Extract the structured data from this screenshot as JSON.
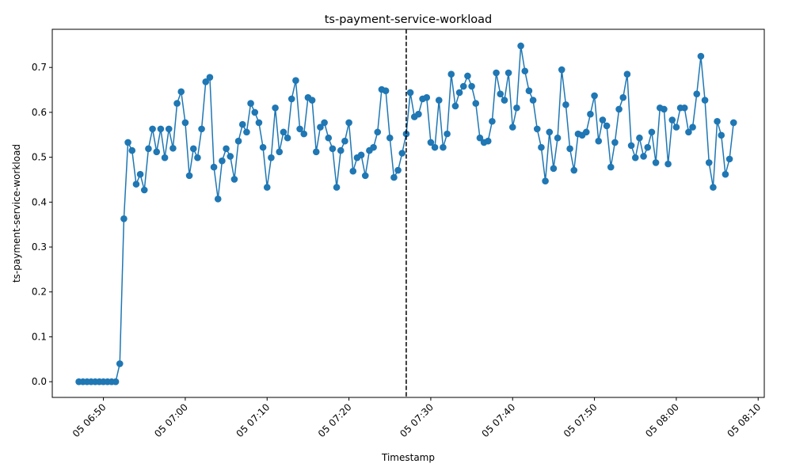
{
  "chart_data": {
    "type": "line",
    "title": "ts-payment-service-workload",
    "xlabel": "Timestamp",
    "ylabel": "ts-payment-service-workload",
    "x_start": "05 06:47",
    "x_step_seconds": 30,
    "xlim": [
      "05 06:43:45",
      "05 08:10:45"
    ],
    "ylim": [
      -0.035,
      0.785
    ],
    "y_ticks": [
      0.0,
      0.1,
      0.2,
      0.3,
      0.4,
      0.5,
      0.6,
      0.7
    ],
    "y_tick_labels": [
      "0.0",
      "0.1",
      "0.2",
      "0.3",
      "0.4",
      "0.5",
      "0.6",
      "0.7"
    ],
    "x_ticks": [
      "05 06:50",
      "05 07:00",
      "05 07:10",
      "05 07:20",
      "05 07:30",
      "05 07:40",
      "05 07:50",
      "05 08:00",
      "05 08:10"
    ],
    "x_tick_labels": [
      "05 06:50",
      "05 07:00",
      "05 07:10",
      "05 07:20",
      "05 07:30",
      "05 07:40",
      "05 07:50",
      "05 08:00",
      "05 08:10"
    ],
    "vline": "05 07:27",
    "series": [
      {
        "color": "#1f77b4",
        "values": [
          0.0,
          0.0,
          0.0,
          0.0,
          0.0,
          0.0,
          0.0,
          0.0,
          0.0,
          0.0,
          0.04,
          0.363,
          0.533,
          0.515,
          0.44,
          0.462,
          0.427,
          0.519,
          0.563,
          0.512,
          0.563,
          0.499,
          0.563,
          0.52,
          0.62,
          0.646,
          0.577,
          0.459,
          0.519,
          0.499,
          0.563,
          0.668,
          0.678,
          0.478,
          0.407,
          0.492,
          0.519,
          0.502,
          0.451,
          0.536,
          0.573,
          0.556,
          0.62,
          0.6,
          0.577,
          0.522,
          0.433,
          0.499,
          0.61,
          0.512,
          0.556,
          0.543,
          0.63,
          0.671,
          0.563,
          0.552,
          0.633,
          0.627,
          0.512,
          0.567,
          0.577,
          0.543,
          0.519,
          0.433,
          0.515,
          0.536,
          0.577,
          0.469,
          0.499,
          0.505,
          0.459,
          0.515,
          0.522,
          0.556,
          0.651,
          0.648,
          0.543,
          0.455,
          0.471,
          0.509,
          0.552,
          0.644,
          0.59,
          0.596,
          0.63,
          0.633,
          0.533,
          0.522,
          0.627,
          0.522,
          0.552,
          0.685,
          0.614,
          0.644,
          0.658,
          0.681,
          0.658,
          0.62,
          0.543,
          0.533,
          0.536,
          0.58,
          0.688,
          0.641,
          0.627,
          0.688,
          0.567,
          0.61,
          0.748,
          0.692,
          0.648,
          0.627,
          0.563,
          0.522,
          0.447,
          0.556,
          0.475,
          0.543,
          0.695,
          0.617,
          0.519,
          0.471,
          0.552,
          0.549,
          0.556,
          0.596,
          0.637,
          0.536,
          0.583,
          0.57,
          0.478,
          0.533,
          0.607,
          0.633,
          0.685,
          0.526,
          0.499,
          0.543,
          0.502,
          0.522,
          0.556,
          0.488,
          0.61,
          0.607,
          0.485,
          0.583,
          0.567,
          0.61,
          0.61,
          0.556,
          0.567,
          0.641,
          0.725,
          0.627,
          0.488,
          0.433,
          0.58,
          0.549,
          0.462,
          0.496,
          0.577
        ]
      }
    ],
    "grid": false,
    "legend": "none"
  }
}
